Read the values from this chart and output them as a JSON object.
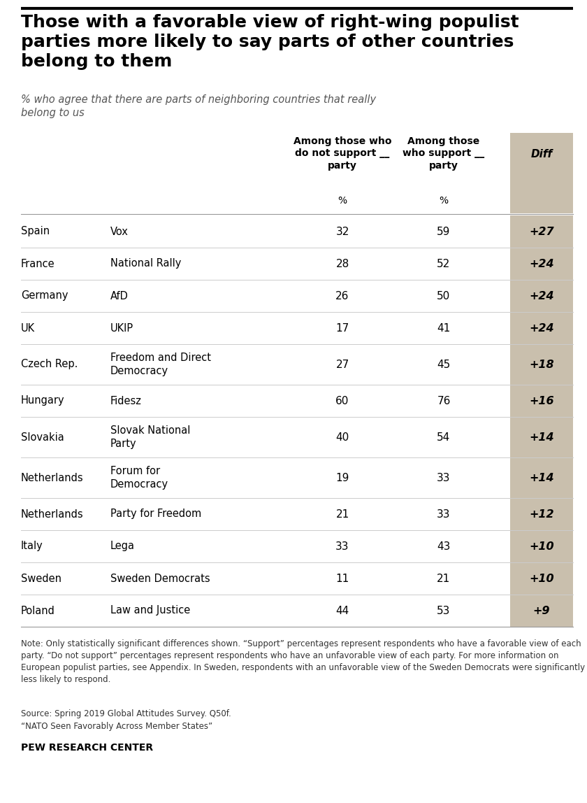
{
  "title": "Those with a favorable view of right-wing populist\nparties more likely to say parts of other countries\nbelong to them",
  "subtitle": "% who agree that there are parts of neighboring countries that really\nbelong to us",
  "col_headers": [
    "Among those who\ndo not support __\nparty",
    "Among those\nwho support __\nparty",
    "Diff"
  ],
  "rows": [
    {
      "country": "Spain",
      "party": "Vox",
      "no_support": "32",
      "support": "59",
      "diff": "+27"
    },
    {
      "country": "France",
      "party": "National Rally",
      "no_support": "28",
      "support": "52",
      "diff": "+24"
    },
    {
      "country": "Germany",
      "party": "AfD",
      "no_support": "26",
      "support": "50",
      "diff": "+24"
    },
    {
      "country": "UK",
      "party": "UKIP",
      "no_support": "17",
      "support": "41",
      "diff": "+24"
    },
    {
      "country": "Czech Rep.",
      "party": "Freedom and Direct\nDemocracy",
      "no_support": "27",
      "support": "45",
      "diff": "+18"
    },
    {
      "country": "Hungary",
      "party": "Fidesz",
      "no_support": "60",
      "support": "76",
      "diff": "+16"
    },
    {
      "country": "Slovakia",
      "party": "Slovak National\nParty",
      "no_support": "40",
      "support": "54",
      "diff": "+14"
    },
    {
      "country": "Netherlands",
      "party": "Forum for\nDemocracy",
      "no_support": "19",
      "support": "33",
      "diff": "+14"
    },
    {
      "country": "Netherlands",
      "party": "Party for Freedom",
      "no_support": "21",
      "support": "33",
      "diff": "+12"
    },
    {
      "country": "Italy",
      "party": "Lega",
      "no_support": "33",
      "support": "43",
      "diff": "+10"
    },
    {
      "country": "Sweden",
      "party": "Sweden Democrats",
      "no_support": "11",
      "support": "21",
      "diff": "+10"
    },
    {
      "country": "Poland",
      "party": "Law and Justice",
      "no_support": "44",
      "support": "53",
      "diff": "+9"
    }
  ],
  "note1": "Note: Only statistically significant differences shown. “Support” percentages represent respondents who have a favorable view of each party. “Do not support” percentages represent respondents who have an unfavorable view of each party. For more information on European populist parties, see Appendix. In Sweden, respondents with an unfavorable view of the Sweden Democrats were significantly less likely to respond.",
  "source_line1": "Source: Spring 2019 Global Attitudes Survey. Q50f.",
  "source_line2": "“NATO Seen Favorably Across Member States”",
  "credit": "PEW RESEARCH CENTER",
  "diff_bg_color": "#c9bfad",
  "text_color": "#000000",
  "bg_color": "#ffffff"
}
